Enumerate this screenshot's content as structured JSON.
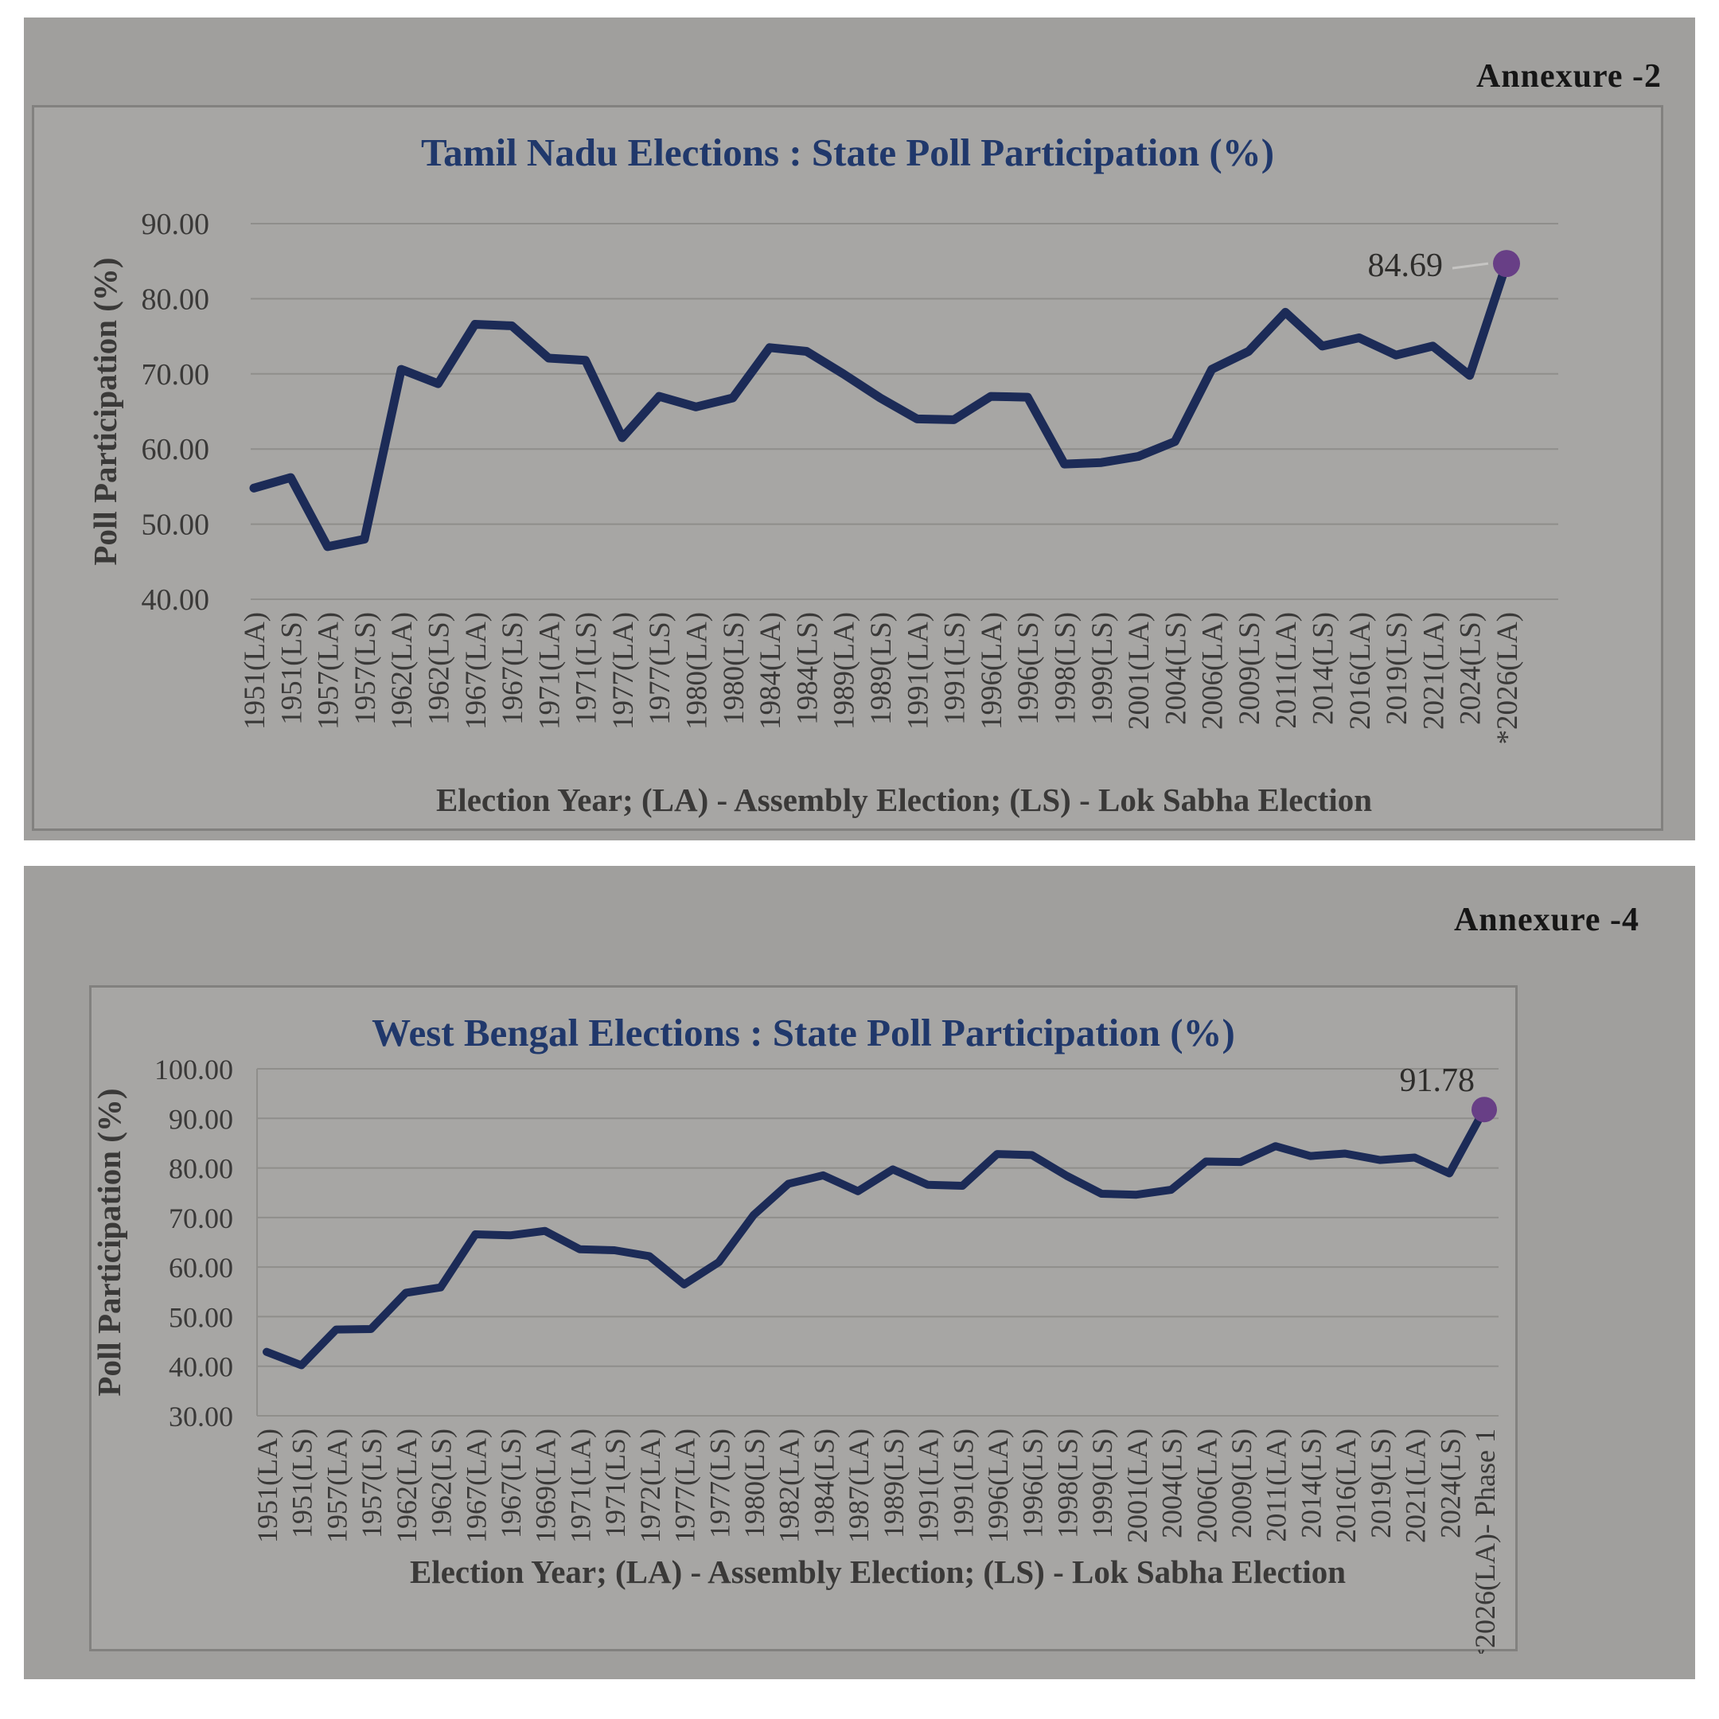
{
  "page": {
    "background": "#ffffff",
    "panel_color": "#a09f9d",
    "card_color": "#a7a6a4"
  },
  "sections": [
    {
      "annexure": "Annexure -2"
    },
    {
      "annexure": "Annexure -4"
    }
  ],
  "chart_data": [
    {
      "type": "line",
      "title": "Tamil Nadu Elections : State Poll Participation (%)",
      "xlabel": "Election Year; (LA) - Assembly Election; (LS) - Lok Sabha Election",
      "ylabel": "Poll Participation (%)",
      "ylim": [
        40,
        90
      ],
      "yticks": [
        90,
        80,
        70,
        60,
        50,
        40
      ],
      "grid": true,
      "legend": "none",
      "categories": [
        "1951(LA)",
        "1951(LS)",
        "1957(LA)",
        "1957(LS)",
        "1962(LA)",
        "1962(LS)",
        "1967(LA)",
        "1967(LS)",
        "1971(LA)",
        "1971(LS)",
        "1977(LA)",
        "1977(LS)",
        "1980(LA)",
        "1980(LS)",
        "1984(LA)",
        "1984(LS)",
        "1989(LA)",
        "1989(LS)",
        "1991(LA)",
        "1991(LS)",
        "1996(LA)",
        "1996(LS)",
        "1998(LS)",
        "1999(LS)",
        "2001(LA)",
        "2004(LS)",
        "2006(LA)",
        "2009(LS)",
        "2011(LA)",
        "2014(LS)",
        "2016(LA)",
        "2019(LS)",
        "2021(LA)",
        "2024(LS)",
        "*2026(LA)"
      ],
      "values": [
        54.8,
        56.2,
        47.0,
        48.0,
        70.6,
        68.7,
        76.6,
        76.4,
        72.1,
        71.8,
        61.5,
        67.0,
        65.6,
        66.8,
        73.5,
        73.0,
        70.0,
        66.8,
        64.0,
        63.9,
        67.0,
        66.9,
        58.0,
        58.2,
        59.0,
        61.0,
        70.6,
        73.0,
        78.2,
        73.7,
        74.8,
        72.5,
        73.7,
        69.8,
        84.69
      ],
      "final_label": "84.69",
      "line_color": "#1c2b57",
      "marker_color": "#683f86",
      "leader_color": "#c6c5c3",
      "grid_color": "#8f8e8b",
      "text_color": "#3a3938",
      "label_color": "#2e2d2b"
    },
    {
      "type": "line",
      "title": "West Bengal Elections : State Poll Participation (%)",
      "xlabel": "Election Year; (LA) - Assembly Election; (LS) - Lok Sabha Election",
      "ylabel": "Poll Participation (%)",
      "ylim": [
        30,
        100
      ],
      "yticks": [
        100,
        90,
        80,
        70,
        60,
        50,
        40,
        30
      ],
      "grid": true,
      "legend": "none",
      "categories": [
        "1951(LA)",
        "1951(LS)",
        "1957(LA)",
        "1957(LS)",
        "1962(LA)",
        "1962(LS)",
        "1967(LA)",
        "1967(LS)",
        "1969(LA)",
        "1971(LA)",
        "1971(LS)",
        "1972(LA)",
        "1977(LA)",
        "1977(LS)",
        "1980(LS)",
        "1982(LA)",
        "1984(LS)",
        "1987(LA)",
        "1989(LS)",
        "1991(LA)",
        "1991(LS)",
        "1996(LA)",
        "1996(LS)",
        "1998(LS)",
        "1999(LS)",
        "2001(LA)",
        "2004(LS)",
        "2006(LA)",
        "2009(LS)",
        "2011(LA)",
        "2014(LS)",
        "2016(LA)",
        "2019(LS)",
        "2021(LA)",
        "2024(LS)",
        "*2026(LA)- Phase 1"
      ],
      "values": [
        42.9,
        40.2,
        47.4,
        47.5,
        54.8,
        55.9,
        66.6,
        66.4,
        67.3,
        63.6,
        63.4,
        62.2,
        56.5,
        61.0,
        70.5,
        76.8,
        78.5,
        75.3,
        79.7,
        76.6,
        76.4,
        82.8,
        82.6,
        78.4,
        74.8,
        74.6,
        75.6,
        81.3,
        81.2,
        84.4,
        82.4,
        82.9,
        81.6,
        82.1,
        78.9,
        91.78
      ],
      "final_label": "91.78",
      "line_color": "#1c2b57",
      "marker_color": "#683f86",
      "leader_color": "#c6c5c3",
      "grid_color": "#8f8e8b",
      "text_color": "#3a3938",
      "label_color": "#2e2d2b"
    }
  ]
}
